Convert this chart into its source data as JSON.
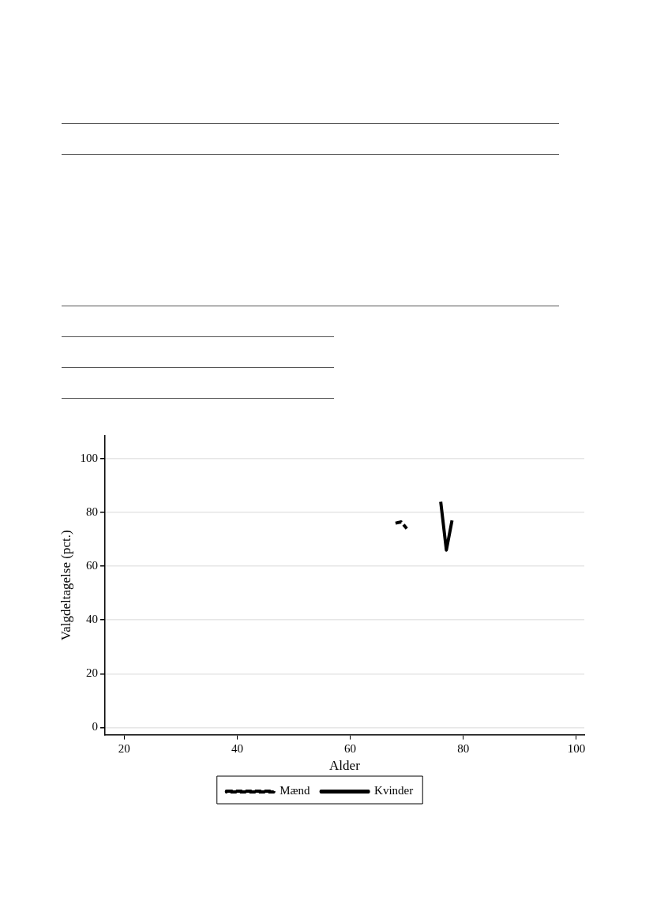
{
  "chart_data": {
    "type": "line",
    "xlabel": "Alder",
    "ylabel": "Valgdeltagelse (pct.)",
    "xlim": [
      16.6,
      101.4
    ],
    "xticks": [
      20,
      40,
      60,
      80,
      100
    ],
    "ylim": [
      -2.7,
      108.5
    ],
    "yticks": [
      0,
      20,
      40,
      60,
      80,
      100
    ],
    "grid": "y",
    "legend": "bottom",
    "marker": "none",
    "series": [
      {
        "name": "Mænd",
        "color": "#000000",
        "line_style": "dashed",
        "x": [
          68,
          69,
          70
        ],
        "values": [
          76,
          76.5,
          74
        ]
      },
      {
        "name": "Kvinder",
        "color": "#000000",
        "line_style": "solid",
        "x": [
          76,
          77,
          78
        ],
        "values": [
          84,
          66,
          77
        ]
      }
    ]
  }
}
